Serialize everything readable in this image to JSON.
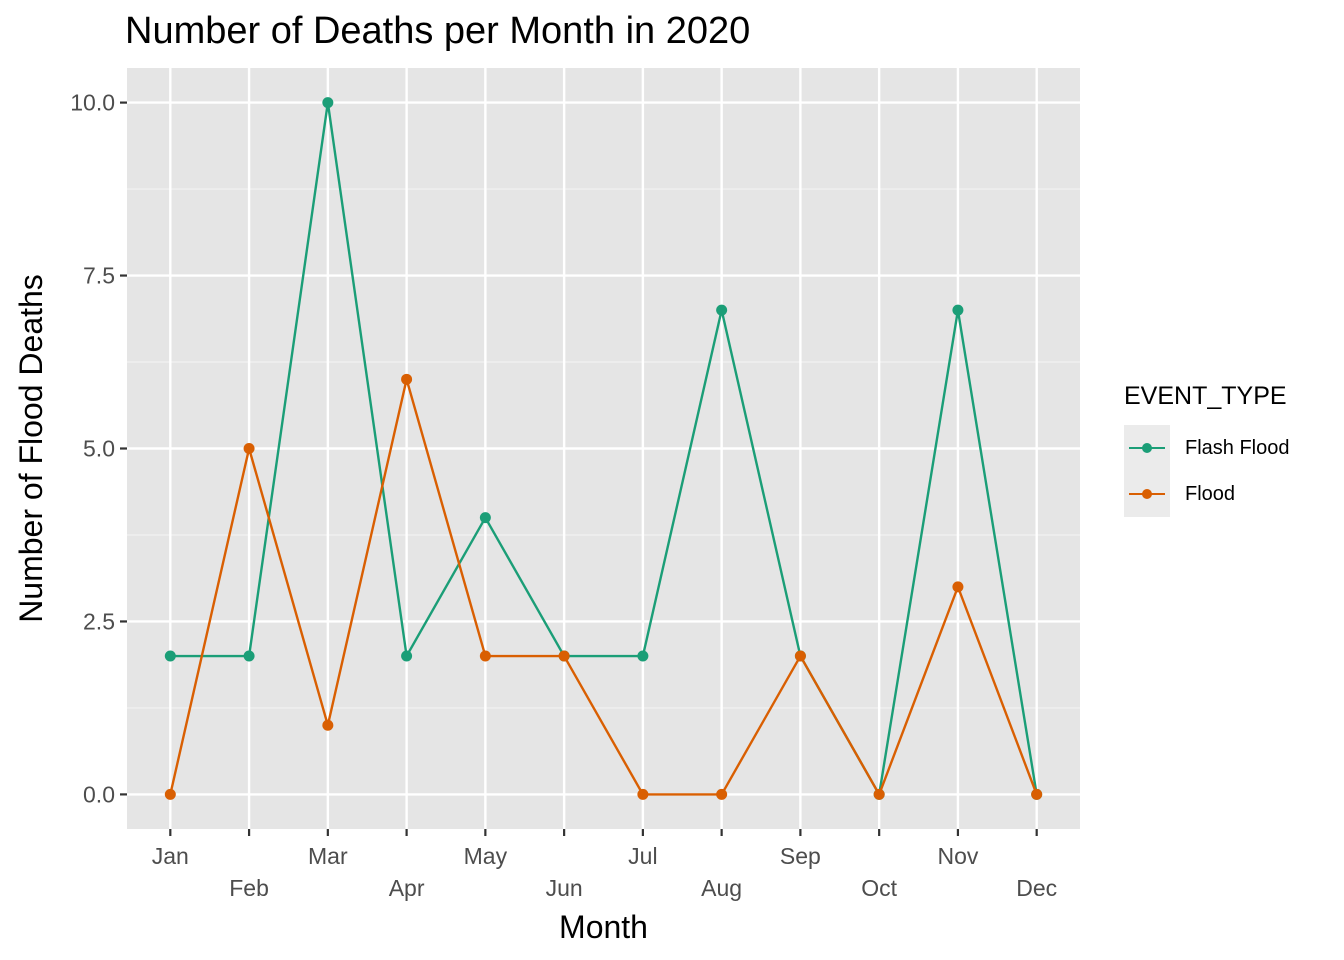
{
  "chart_data": {
    "type": "line",
    "title": "Number of Deaths per Month in 2020",
    "xlabel": "Month",
    "ylabel": "Number of Flood Deaths",
    "categories": [
      "Jan",
      "Feb",
      "Mar",
      "Apr",
      "May",
      "Jun",
      "Jul",
      "Aug",
      "Sep",
      "Oct",
      "Nov",
      "Dec"
    ],
    "y_ticks": [
      "0.0",
      "2.5",
      "5.0",
      "7.5",
      "10.0"
    ],
    "ylim": [
      -0.5,
      10.5
    ],
    "grid": true,
    "legend_position": "right",
    "legend_title": "EVENT_TYPE",
    "series": [
      {
        "name": "Flash Flood",
        "color": "#1b9e77",
        "values": [
          2,
          2,
          10,
          2,
          4,
          2,
          2,
          7,
          2,
          0,
          7,
          0
        ]
      },
      {
        "name": "Flood",
        "color": "#d95f02",
        "values": [
          0,
          5,
          1,
          6,
          2,
          2,
          0,
          0,
          2,
          0,
          3,
          0
        ]
      }
    ]
  }
}
